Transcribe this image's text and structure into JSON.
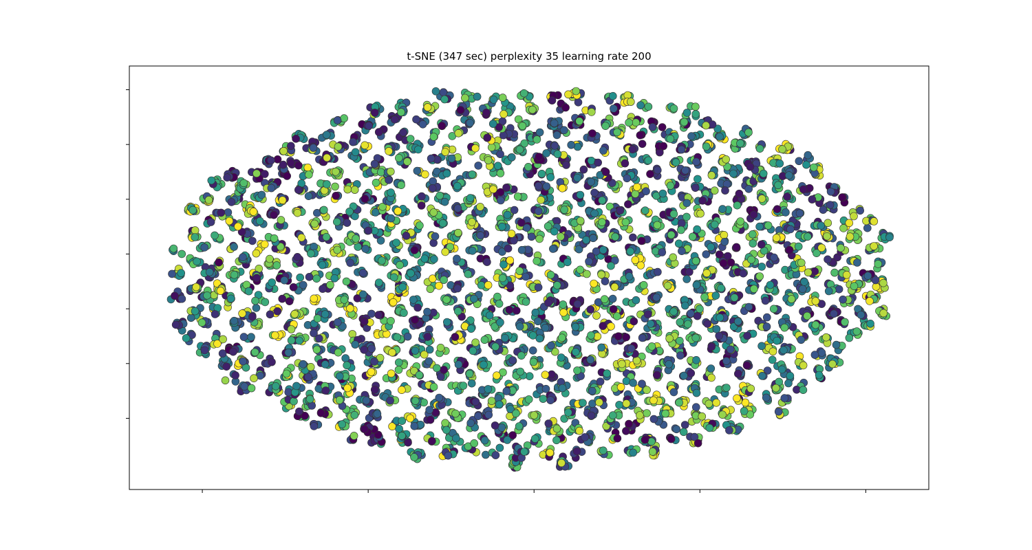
{
  "chart_data": {
    "type": "scatter",
    "title": "t-SNE (347 sec) perplexity 35 learning rate 200",
    "xlabel": "",
    "ylabel": "",
    "xlim": [
      -10.4,
      37.8
    ],
    "ylim": [
      -7.8,
      38.6
    ],
    "x_tick_values": [
      -6,
      4,
      14,
      24,
      34
    ],
    "y_tick_values": [
      0,
      6,
      12,
      18,
      24,
      30,
      36
    ],
    "tick_labels_visible": false,
    "grid": false,
    "legend": "none",
    "colormap": "viridis",
    "colormap_stops": [
      "#440154",
      "#3b528b",
      "#21918c",
      "#5ec962",
      "#fde725"
    ],
    "marker_edge_color": "#333333",
    "ellipse": {
      "center_x": 13.8,
      "center_y": 15.5,
      "radius_x": 22.0,
      "radius_y": 20.5
    },
    "cluster_spacing": 1.6,
    "points_per_cluster_range": [
      4,
      12
    ],
    "random_seed": 347
  }
}
